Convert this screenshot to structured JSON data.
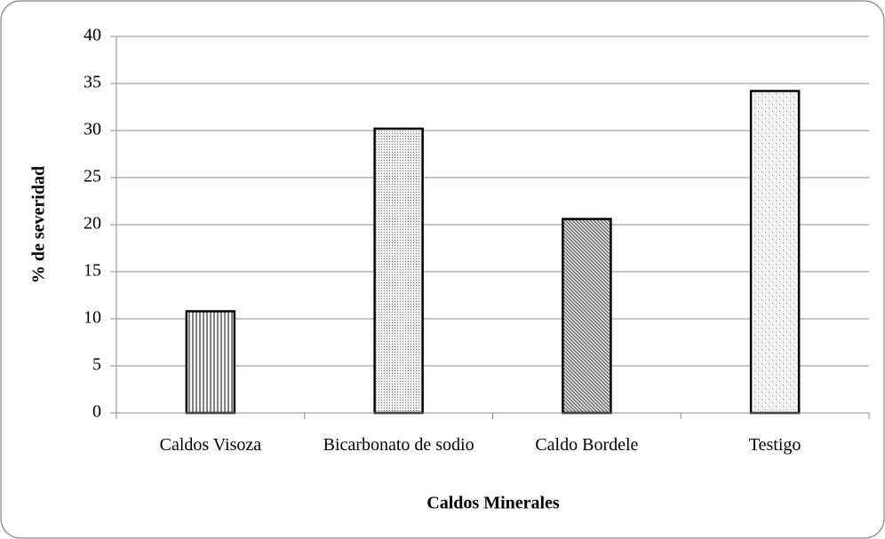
{
  "chart_data": {
    "type": "bar",
    "xlabel": "Caldos Minerales",
    "ylabel": "% de severidad",
    "categories": [
      "Caldos Visoza",
      "Bicarbonato de sodio",
      "Caldo Bordele",
      "Testigo"
    ],
    "values": [
      10.8,
      30.2,
      20.6,
      34.2
    ],
    "color": "#000000",
    "ylim": [
      0,
      40
    ],
    "yticks": [
      0,
      5,
      10,
      15,
      20,
      25,
      30,
      35,
      40
    ],
    "grid": true
  }
}
